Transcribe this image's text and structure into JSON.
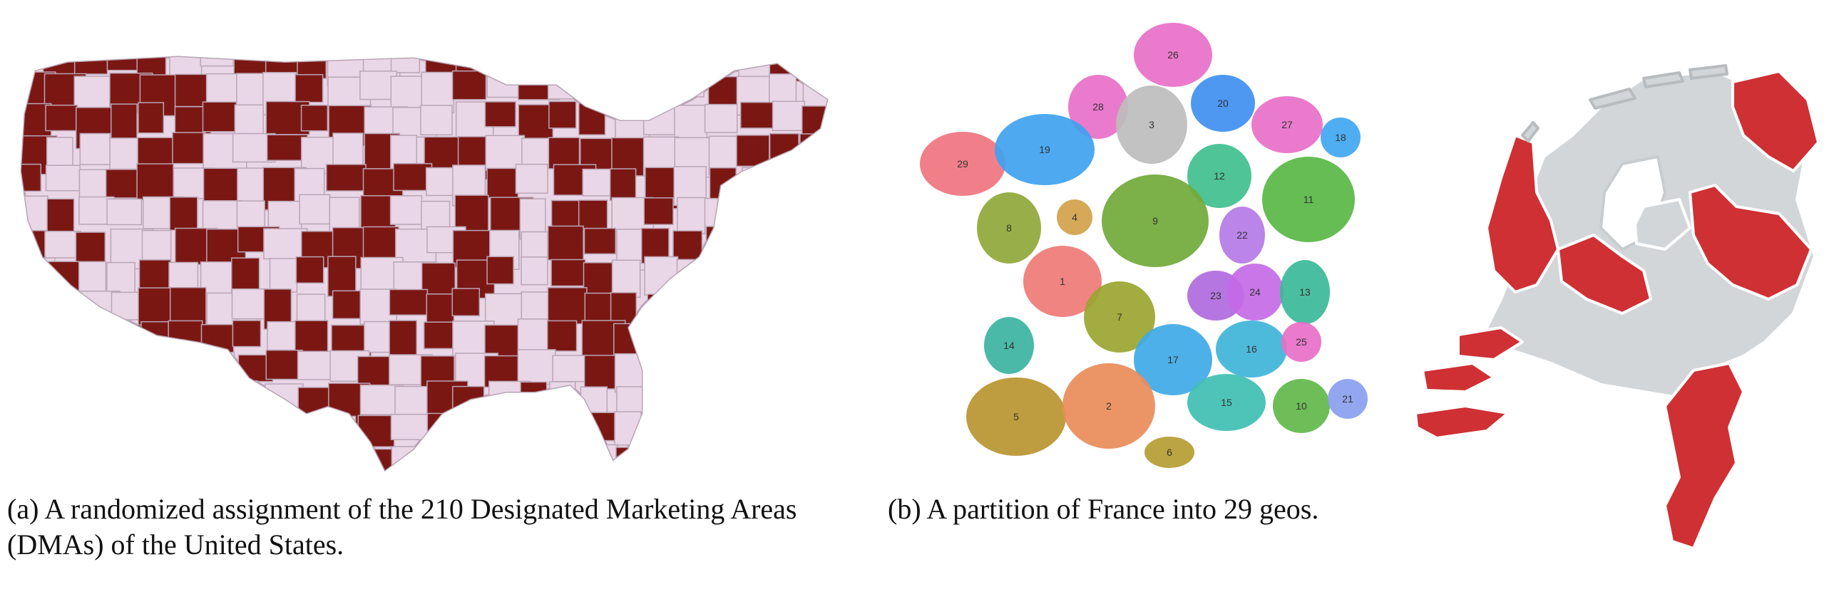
{
  "captions": {
    "a": "(a) A randomized assignment of the 210 Designated Marketing Areas (DMAs) of the United States.",
    "b": "(b) A partition of France into 29 geos."
  },
  "colors": {
    "us_treatment": "#7b1713",
    "us_control": "#e9d6e6",
    "us_border": "#b9a5b5",
    "nl_treatment": "#cf3034",
    "nl_control": "#d3d6d9",
    "nl_border": "#ffffff"
  },
  "france": {
    "geos": [
      {
        "id": "26",
        "color": "#e86fc8"
      },
      {
        "id": "28",
        "color": "#e86fc8"
      },
      {
        "id": "3",
        "color": "#bdbdbd"
      },
      {
        "id": "20",
        "color": "#3f8ff0"
      },
      {
        "id": "27",
        "color": "#e86fc8"
      },
      {
        "id": "18",
        "color": "#3fa7f0"
      },
      {
        "id": "29",
        "color": "#ef7480"
      },
      {
        "id": "19",
        "color": "#3fa2f0"
      },
      {
        "id": "12",
        "color": "#3fbf8e"
      },
      {
        "id": "11",
        "color": "#58b745"
      },
      {
        "id": "8",
        "color": "#8fa83a"
      },
      {
        "id": "4",
        "color": "#d1a24a"
      },
      {
        "id": "9",
        "color": "#71a93a"
      },
      {
        "id": "22",
        "color": "#b47ae6"
      },
      {
        "id": "1",
        "color": "#ef7a76"
      },
      {
        "id": "23",
        "color": "#b06ae0"
      },
      {
        "id": "24",
        "color": "#c46ae6"
      },
      {
        "id": "13",
        "color": "#3bb998"
      },
      {
        "id": "7",
        "color": "#9ba530"
      },
      {
        "id": "14",
        "color": "#3bb39f"
      },
      {
        "id": "17",
        "color": "#3fa9e6"
      },
      {
        "id": "16",
        "color": "#3fb4d8"
      },
      {
        "id": "25",
        "color": "#e86fc8"
      },
      {
        "id": "5",
        "color": "#b99530"
      },
      {
        "id": "2",
        "color": "#e98c5a"
      },
      {
        "id": "15",
        "color": "#3fbfb2"
      },
      {
        "id": "10",
        "color": "#61b84a"
      },
      {
        "id": "21",
        "color": "#8aa0f0"
      },
      {
        "id": "6",
        "color": "#b59c32"
      }
    ]
  }
}
